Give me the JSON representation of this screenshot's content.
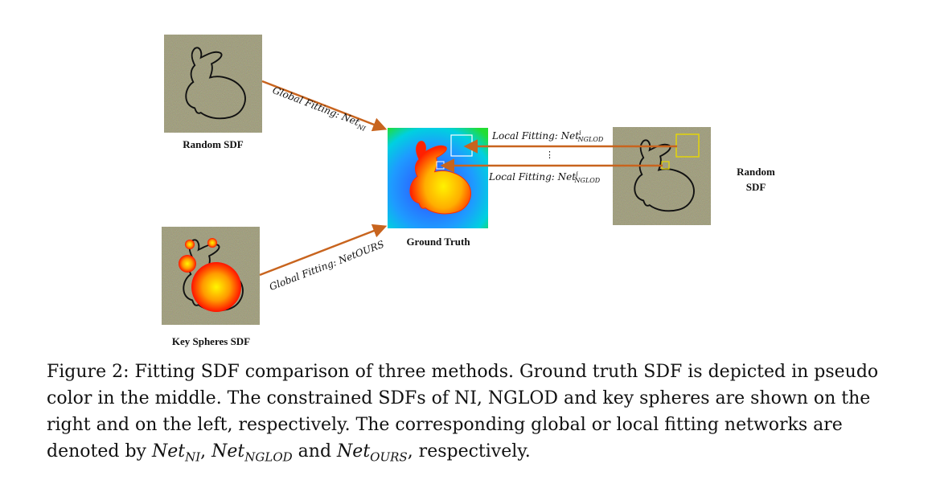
{
  "labels": {
    "random_sdf_left": "Random SDF",
    "key_spheres": "Key Spheres SDF",
    "ground_truth": "Ground Truth",
    "random_sdf_right_line1": "Random",
    "random_sdf_right_line2": "SDF"
  },
  "arrows": {
    "global_ni_prefix": "Global Fitting: Net",
    "global_ni_sub": "NI",
    "global_ours_text": "Global Fitting: NetOURS",
    "local_prefix": "Local Fitting: Net",
    "local_sub": "NGLOD",
    "local_sup_i": "i",
    "local_sup_j": "j",
    "vdots": "⋮"
  },
  "caption": {
    "text_a": "Figure 2: Fitting SDF comparison of three methods. Ground truth SDF is depicted in pseudo color in the middle. The constrained SDFs of NI, NGLOD and key spheres are shown on the right and on the left, respectively. The corresponding global or local fitting networks are denoted by ",
    "net": "Net",
    "sub_ni": "NI",
    "sep1": ", ",
    "sub_nglod": "NGLOD",
    "sep2": " and ",
    "sub_ours": "OURS",
    "text_end": ", respectively."
  },
  "colors": {
    "noise_bg": "#5e5a38",
    "arrow": "#c8641e",
    "outline": "#111111",
    "gt_inner": "#fff200",
    "gt_outer": "#ff1a00",
    "field_blue": "#1a5cff",
    "field_cyan": "#00d8e8",
    "field_green": "#22dd33"
  }
}
